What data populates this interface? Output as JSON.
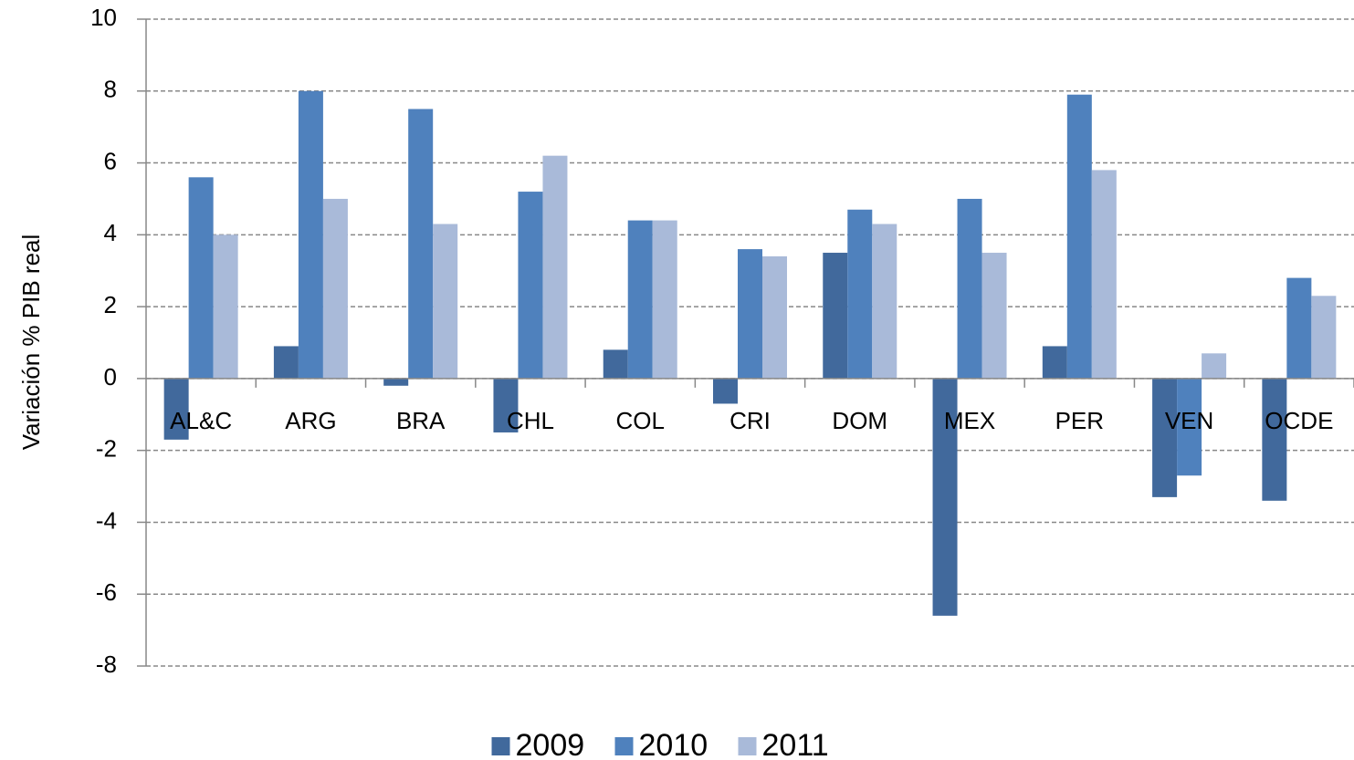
{
  "chart_data": {
    "type": "bar",
    "y_label": "Variación % PIB real",
    "categories": [
      "AL&C",
      "ARG",
      "BRA",
      "CHL",
      "COL",
      "CRI",
      "DOM",
      "MEX",
      "PER",
      "VEN",
      "OCDE"
    ],
    "series": [
      {
        "name": "2009",
        "color": "#41699c",
        "values": [
          -1.7,
          0.9,
          -0.2,
          -1.5,
          0.8,
          -0.7,
          3.5,
          -6.6,
          0.9,
          -3.3,
          -3.4
        ]
      },
      {
        "name": "2010",
        "color": "#4f81bd",
        "values": [
          5.6,
          8.0,
          7.5,
          5.2,
          4.4,
          3.6,
          4.7,
          5.0,
          7.9,
          -2.7,
          2.8
        ]
      },
      {
        "name": "2011",
        "color": "#a9bad9",
        "values": [
          4.0,
          5.0,
          4.3,
          6.2,
          4.4,
          3.4,
          4.3,
          3.5,
          5.8,
          0.7,
          2.3
        ]
      }
    ],
    "ylim": [
      -8,
      10
    ],
    "yticks": [
      -8,
      -6,
      -4,
      -2,
      0,
      2,
      4,
      6,
      8,
      10
    ],
    "grid": true,
    "legend": "bottom"
  }
}
